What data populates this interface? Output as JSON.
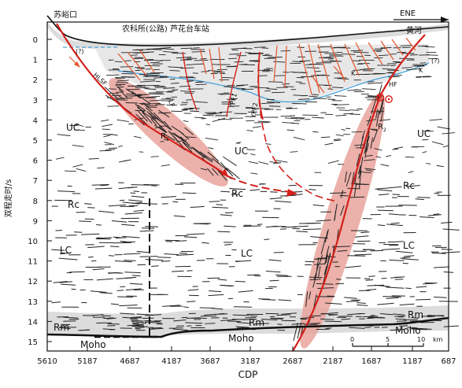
{
  "top_labels": {
    "left_place": "苏峪口",
    "middle_place": "农科所(公路)  芦花台车站",
    "right_place": "黄河",
    "direction": "ENE"
  },
  "y_axis": {
    "title": "双程走时/s",
    "ticks": [
      "0",
      "1",
      "2",
      "3",
      "4",
      "5",
      "6",
      "7",
      "8",
      "9",
      "10",
      "11",
      "12",
      "13",
      "14",
      "15"
    ]
  },
  "x_axis": {
    "title": "CDP",
    "ticks": [
      "5610",
      "5187",
      "4687",
      "4187",
      "3687",
      "3187",
      "2687",
      "2187",
      "1687",
      "1187",
      "687"
    ]
  },
  "faults": {
    "hlsf": "HLSF",
    "lf": "LF",
    "ypf1": "YPF1",
    "ypf2": "YPF2",
    "hf": "HF"
  },
  "unknown_marks": [
    "(?)",
    "(?)"
  ],
  "kmarks": [
    "K",
    "K"
  ],
  "zones": {
    "uc_left": "UC",
    "uc_center": "UC",
    "uc_right": "UC",
    "rc_left": "Rc",
    "rc_center": "Rc",
    "rc_right": "Rc",
    "lc_left": "LC",
    "lc_center": "LC",
    "lc_right": "LC",
    "rm_left": "Rm",
    "rm_center": "Rm",
    "rm_right": "Rm",
    "moho_left": "Moho",
    "moho_center": "Moho",
    "moho_right": "Moho",
    "r1": "R",
    "r2": "R"
  },
  "scale": {
    "t0": "0",
    "t5": "5",
    "t10": "10",
    "unit": "km"
  },
  "colors": {
    "fault_red": "#d4201a",
    "zone_pink": "#e8a39b",
    "band_gray": "#dcdcdc",
    "water_blue": "#4aa3d8",
    "thin_orange": "#e5552b"
  }
}
